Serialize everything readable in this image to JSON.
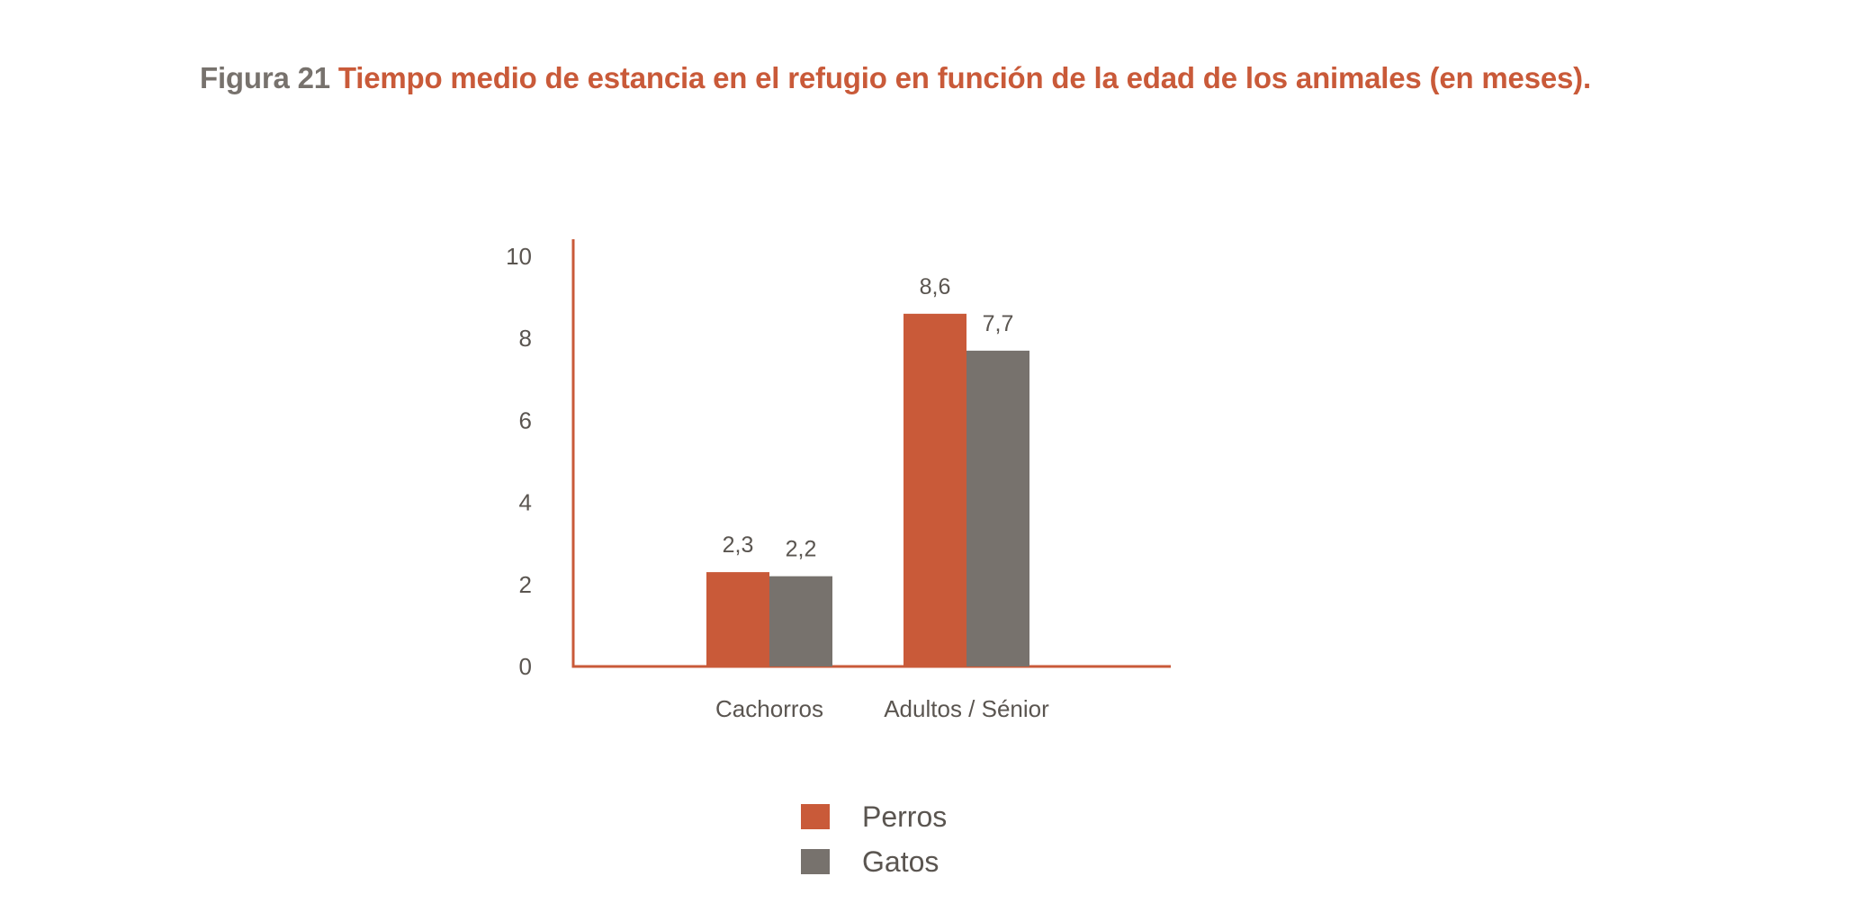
{
  "figure": {
    "number": "Figura 21",
    "caption": "Tiempo medio de estancia en el refugio en función de la edad de los animales (en meses)."
  },
  "colors": {
    "accent": "#c95a39",
    "gray": "#77726d",
    "text": "#5a5550"
  },
  "chart_data": {
    "type": "bar",
    "categories": [
      "Cachorros",
      "Adultos / Sénior"
    ],
    "series": [
      {
        "name": "Perros",
        "values": [
          2.3,
          8.6
        ],
        "labels": [
          "2,3",
          "8,6"
        ],
        "color": "#c95a39"
      },
      {
        "name": "Gatos",
        "values": [
          2.2,
          7.7
        ],
        "labels": [
          "2,2",
          "7,7"
        ],
        "color": "#77726d"
      }
    ],
    "yticks": [
      0,
      2,
      4,
      6,
      8,
      10
    ],
    "ylim": [
      0,
      10.4
    ],
    "grid": false,
    "legend": "bottom"
  }
}
